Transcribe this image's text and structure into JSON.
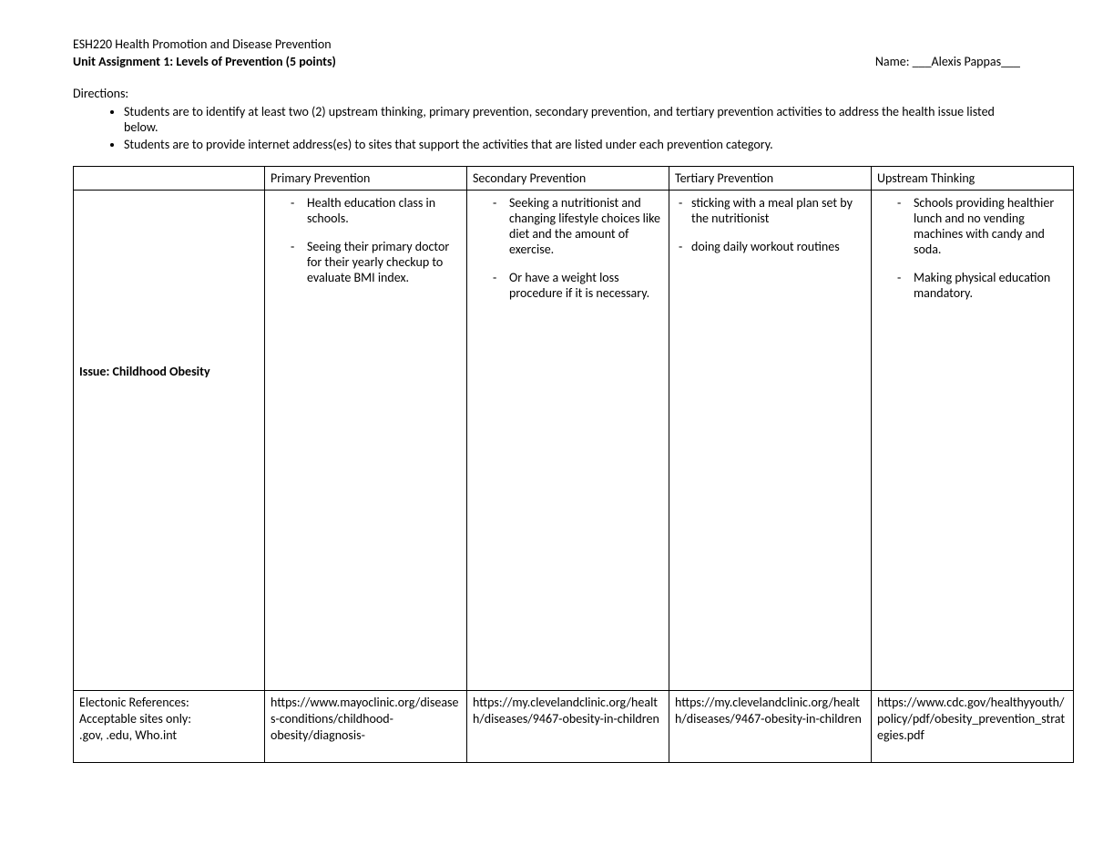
{
  "header": {
    "course": "ESH220 Health Promotion and Disease Prevention",
    "assignment": "Unit Assignment 1: Levels of Prevention (5 points)",
    "name_label": "Name:",
    "name_value": "___Alexis Pappas___"
  },
  "directions": {
    "title": "Directions:",
    "items": [
      "Students are to identify at least two (2) upstream thinking, primary prevention, secondary prevention, and tertiary prevention activities to address the health issue listed below.",
      "Students are to provide internet address(es) to sites that support the activities that are listed under each prevention category."
    ]
  },
  "table": {
    "columns": {
      "primary": "Primary Prevention",
      "secondary": "Secondary Prevention",
      "tertiary": "Tertiary Prevention",
      "upstream": "Upstream Thinking"
    },
    "issue_label": "Issue: Childhood Obesity",
    "primary_items": [
      "Health education class in schools.",
      "Seeing their primary doctor for their yearly checkup to evaluate BMI index."
    ],
    "secondary_items": [
      "Seeking a nutritionist and changing lifestyle choices like diet and the amount of exercise.",
      "Or have a weight loss procedure if it is necessary."
    ],
    "tertiary_items": [
      "sticking with a meal plan set by the nutritionist",
      "doing daily workout routines"
    ],
    "upstream_items": [
      "Schools providing healthier lunch and no vending machines with candy and soda.",
      "Making physical education mandatory."
    ],
    "references": {
      "label_line1": "Electonic References:",
      "label_line2": "Acceptable sites only:",
      "label_line3": ".gov, .edu, Who.int",
      "primary": "https://www.mayoclinic.org/diseases-conditions/childhood-obesity/diagnosis-",
      "secondary": "https://my.clevelandclinic.org/health/diseases/9467-obesity-in-children",
      "tertiary": "https://my.clevelandclinic.org/health/diseases/9467-obesity-in-children",
      "upstream": "https://www.cdc.gov/healthyyouth/policy/pdf/obesity_prevention_strategies.pdf"
    }
  }
}
